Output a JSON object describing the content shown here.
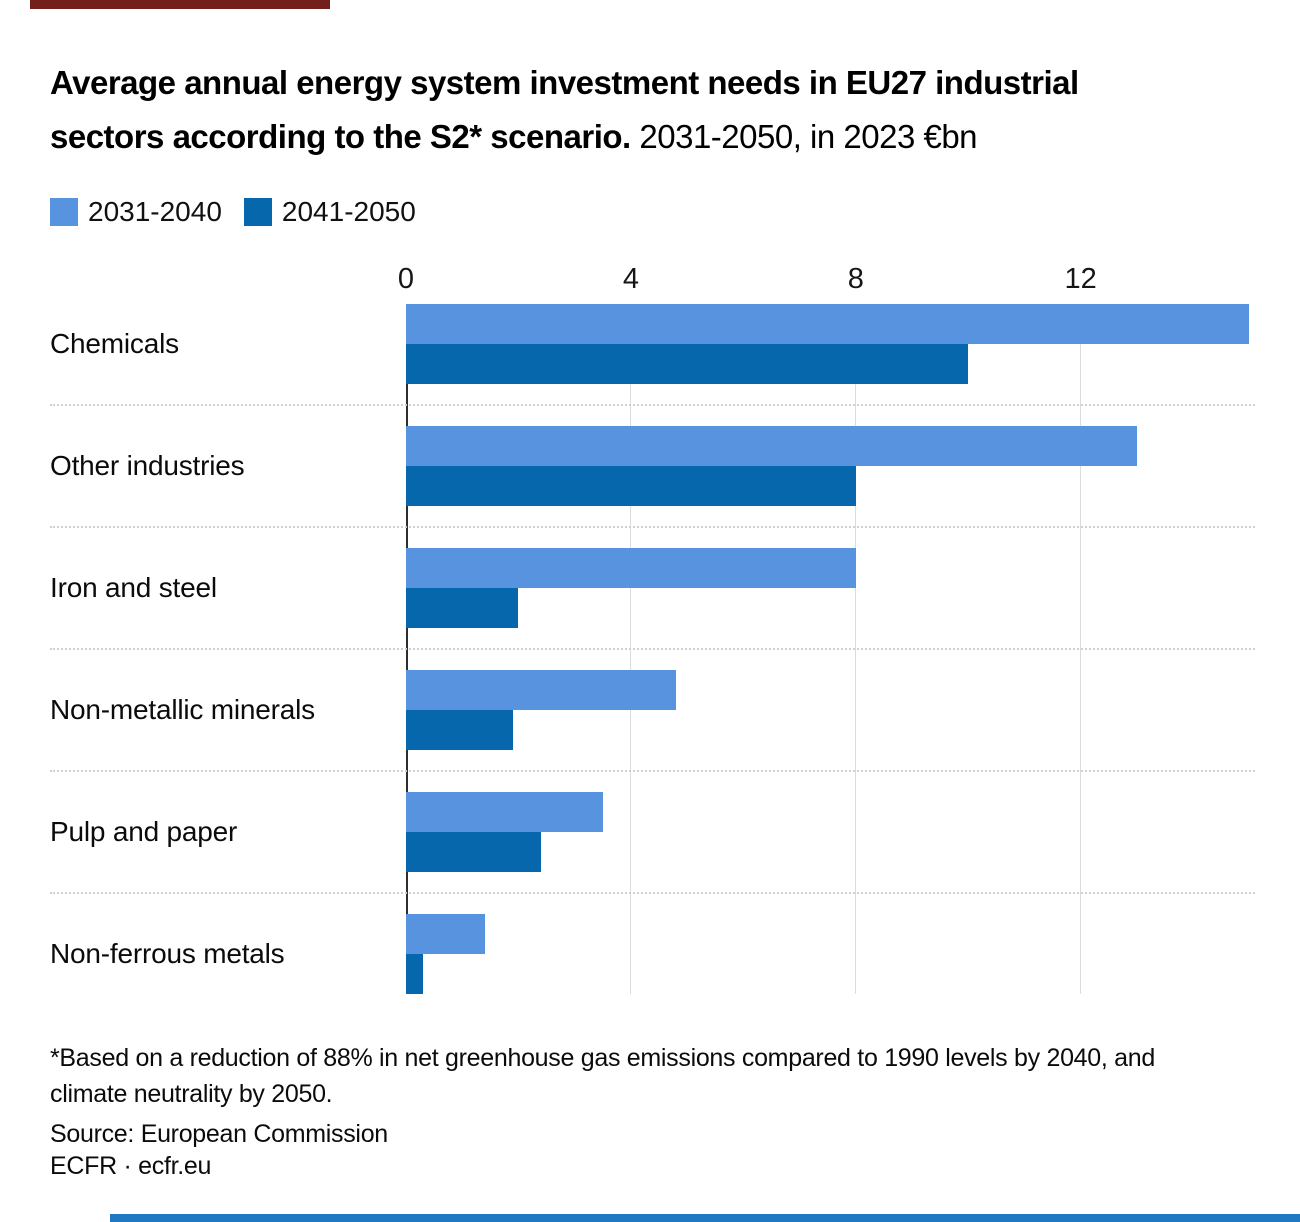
{
  "accents": {
    "top_rule_color": "#73201C",
    "bottom_rule_color": "#1F78C1"
  },
  "header": {
    "title_line1": "Average annual energy system investment needs in EU27 industrial",
    "title_line2": "sectors according to the S2* scenario.",
    "subtitle": " 2031-2050, in 2023 €bn"
  },
  "legend": {
    "items": [
      {
        "label": "2031-2040",
        "color": "#5893DF"
      },
      {
        "label": "2041-2050",
        "color": "#0667AD"
      }
    ]
  },
  "chart_data": {
    "type": "bar",
    "orientation": "horizontal",
    "title": "Average annual energy system investment needs in EU27 industrial sectors according to the S2* scenario.",
    "subtitle": "2031-2050, in 2023 €bn",
    "categories": [
      "Chemicals",
      "Other industries",
      "Iron and steel",
      "Non-metallic minerals",
      "Pulp and paper",
      "Non-ferrous metals"
    ],
    "series": [
      {
        "name": "2031-2040",
        "color": "#5893DF",
        "values": [
          15.0,
          13.0,
          8.0,
          4.8,
          3.5,
          1.4
        ]
      },
      {
        "name": "2041-2050",
        "color": "#0667AD",
        "values": [
          10.0,
          8.0,
          2.0,
          1.9,
          2.4,
          0.3
        ]
      }
    ],
    "x_ticks": [
      0,
      4,
      8,
      12
    ],
    "xlim": [
      0,
      15.1
    ],
    "unit": "2023 €bn",
    "legend_position": "top-left",
    "grid": "vertical solid gridlines at ticks, dotted horizontal row separators"
  },
  "footer": {
    "note_line1": "*Based on a reduction of 88% in net greenhouse gas emissions compared to 1990 levels by 2040, and",
    "note_line2": "climate neutrality by 2050.",
    "source": "Source: European Commission",
    "byline": "ECFR · ecfr.eu"
  }
}
